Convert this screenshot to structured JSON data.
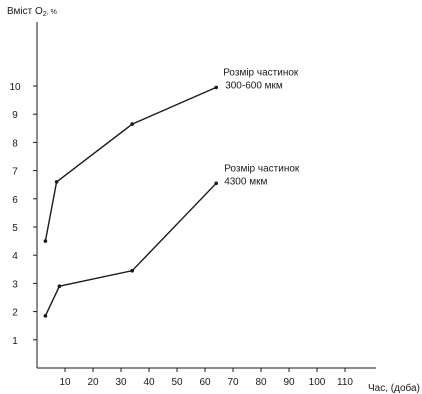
{
  "chart_data": {
    "type": "line",
    "ylabel_main": "Вміст O",
    "ylabel_sub": "2",
    "ylabel_tail": ", %",
    "xlabel": "Час, (доба)",
    "xlim": [
      0,
      120
    ],
    "ylim": [
      0,
      11
    ],
    "xticks": [
      10,
      20,
      30,
      40,
      50,
      60,
      70,
      80,
      90,
      100,
      110
    ],
    "yticks": [
      1,
      2,
      3,
      4,
      5,
      6,
      7,
      8,
      9,
      10
    ],
    "series": [
      {
        "label_lines": [
          "Розмір частинок",
          "300-600 мкм"
        ],
        "x": [
          3,
          7,
          34,
          64
        ],
        "y": [
          4.5,
          6.6,
          8.65,
          9.95
        ]
      },
      {
        "label_lines": [
          "Розмір частинок",
          "4300 мкм"
        ],
        "x": [
          3,
          8,
          34,
          64
        ],
        "y": [
          1.85,
          2.9,
          3.45,
          6.55
        ]
      }
    ]
  }
}
